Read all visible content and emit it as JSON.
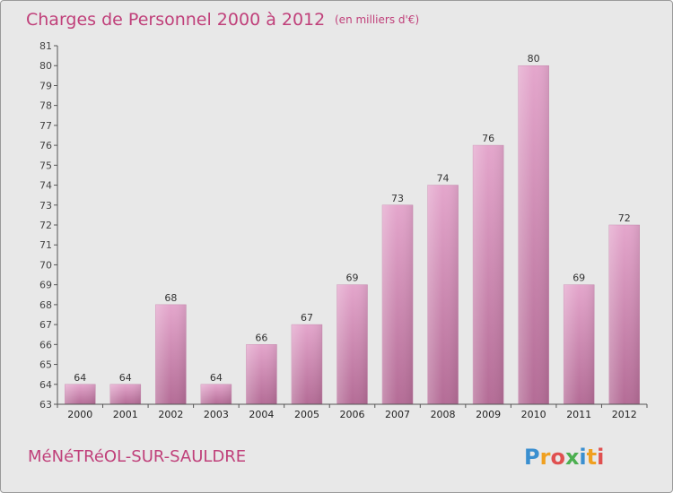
{
  "chart_data": {
    "type": "bar",
    "title": "Charges de Personnel 2000 à 2012",
    "unit_note": "(en milliers d'€)",
    "categories": [
      "2000",
      "2001",
      "2002",
      "2003",
      "2004",
      "2005",
      "2006",
      "2007",
      "2008",
      "2009",
      "2010",
      "2011",
      "2012"
    ],
    "values": [
      64,
      64,
      68,
      64,
      66,
      67,
      69,
      73,
      74,
      76,
      80,
      69,
      72
    ],
    "ylim": [
      63,
      81
    ],
    "yticks": [
      63,
      64,
      65,
      66,
      67,
      68,
      69,
      70,
      71,
      72,
      73,
      74,
      75,
      76,
      77,
      78,
      79,
      80,
      81
    ],
    "xlabel": "",
    "ylabel": "",
    "grid": false,
    "bar_color": "#d890b8"
  },
  "place_name": "MéNéTRéOL-SUR-SAULDRE",
  "logo": {
    "letters": [
      "P",
      "r",
      "o",
      "x",
      "i",
      "t",
      "i"
    ],
    "colors": [
      "#3a8fd0",
      "#f0a020",
      "#e05050",
      "#4caf50",
      "#3a8fd0",
      "#f0a020",
      "#e05050"
    ]
  }
}
